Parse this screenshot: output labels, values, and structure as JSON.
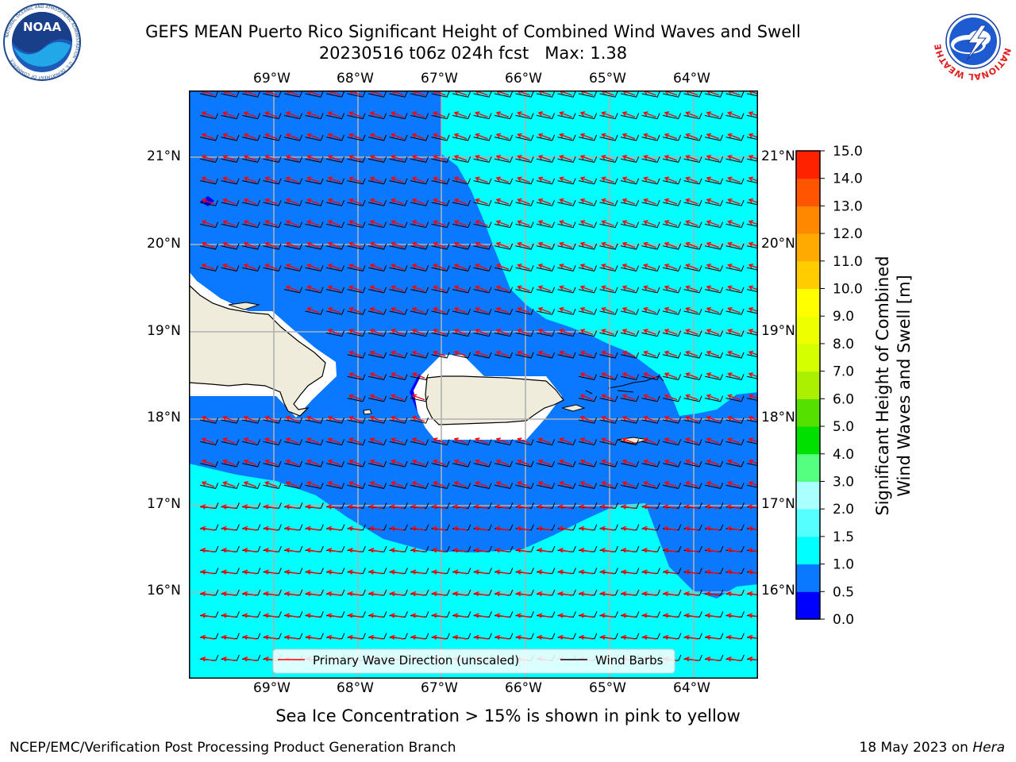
{
  "title": {
    "line1": "GEFS MEAN Puerto Rico Significant Height of Combined Wind Waves and Swell",
    "line2": "20230516 t06z 024h fcst   Max: 1.38"
  },
  "map": {
    "lon_labels": [
      "69°W",
      "68°W",
      "67°W",
      "66°W",
      "65°W",
      "64°W"
    ],
    "lat_labels": [
      "21°N",
      "20°N",
      "19°N",
      "18°N",
      "17°N",
      "16°N"
    ],
    "legend": {
      "wave_direction": "Primary Wave Direction (unscaled)",
      "wind_barbs": "Wind Barbs"
    },
    "colors": {
      "land": "#efecdc",
      "wave_0_0_5": "#0000ff",
      "wave_0_5_1_0": "#0a78ff",
      "wave_1_0_1_5": "#00ffff",
      "arrow": "#ff0000",
      "barb": "#000000"
    }
  },
  "colorbar": {
    "tick_labels": [
      "0.0",
      "0.5",
      "1.0",
      "1.5",
      "2.0",
      "3.0",
      "4.0",
      "5.0",
      "6.0",
      "7.0",
      "8.0",
      "9.0",
      "10.0",
      "11.0",
      "12.0",
      "13.0",
      "14.0",
      "15.0"
    ],
    "colors": [
      "#0000ff",
      "#0a78ff",
      "#00ffff",
      "#55ffff",
      "#aaffff",
      "#55ff80",
      "#00e000",
      "#55e000",
      "#aaf000",
      "#d4ff00",
      "#eeff00",
      "#ffff00",
      "#ffcc00",
      "#ffaa00",
      "#ff8800",
      "#ff5500",
      "#ff2200",
      "#ff0000"
    ],
    "label_line1": "Significant Height of Combined",
    "label_line2": "Wind Waves and Swell [m]"
  },
  "logos": {
    "noaa_text": "NOAA",
    "noaa_ring": "NATIONAL OCEANIC AND ATMOSPHERIC ADMINISTRATION · U.S. DEPARTMENT OF COMMERCE",
    "nws_ring": "NATIONAL WEATHER SERVICE"
  },
  "subtitle": "Sea Ice Concentration > 15% is shown in pink to yellow",
  "footer": {
    "left": "NCEP/EMC/Verification Post Processing Product Generation Branch",
    "right_date": "18 May 2023 on ",
    "right_host": "Hera"
  }
}
